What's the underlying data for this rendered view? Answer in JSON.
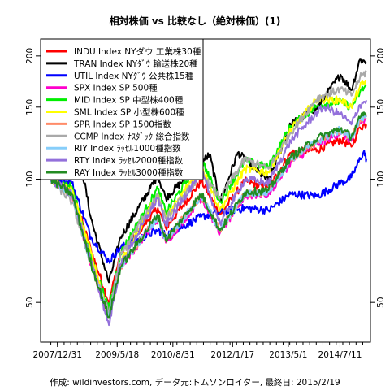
{
  "chart_data": {
    "type": "line",
    "title": "相対株価 vs 比較なし（絶対株価）(1)",
    "footer": "作成: wildinvestors.com, データ元:トムソンロイター, 最終日: 2015/2/19",
    "y_scale": "log",
    "ylim": [
      40,
      220
    ],
    "y_ticks": [
      50,
      100,
      150,
      200
    ],
    "x_range": [
      "2007-11-01",
      "2015-02-19"
    ],
    "x_ticks": [
      {
        "date": "2007-12-31",
        "label": "2007/12/31"
      },
      {
        "date": "2009-05-18",
        "label": "2009/5/18"
      },
      {
        "date": "2010-08-31",
        "label": "2010/8/31"
      },
      {
        "date": "2012-01-17",
        "label": "2012/1/17"
      },
      {
        "date": "2013-05-01",
        "label": "2013/5/1"
      },
      {
        "date": "2014-07-11",
        "label": "2014/7/11"
      }
    ],
    "grid": false,
    "legend_position": "top-left",
    "series": [
      {
        "name": "INDU Index NYダウ 工業株30種",
        "color": "#ff0000",
        "x": [
          "2007-11-01",
          "2008-05-01",
          "2008-10-10",
          "2009-03-09",
          "2009-06-15",
          "2010-04-26",
          "2010-07-02",
          "2011-04-29",
          "2011-10-03",
          "2012-05-01",
          "2012-11-15",
          "2013-05-21",
          "2014-01-02",
          "2014-07-16",
          "2014-10-15",
          "2014-12-26",
          "2015-02-19"
        ],
        "values": [
          100,
          95,
          67,
          50,
          66,
          85,
          76,
          99,
          82,
          99,
          95,
          116,
          118,
          125,
          120,
          134,
          136
        ]
      },
      {
        "name": "TRAN Index NYﾀﾞｳ 輸送株20種",
        "color": "#000000",
        "x": [
          "2007-11-01",
          "2008-07-01",
          "2008-10-10",
          "2009-03-09",
          "2009-06-15",
          "2010-04-26",
          "2010-07-02",
          "2011-07-07",
          "2011-10-03",
          "2012-03-01",
          "2012-11-15",
          "2013-05-21",
          "2014-01-02",
          "2014-07-16",
          "2014-10-15",
          "2014-12-26",
          "2015-02-19"
        ],
        "values": [
          100,
          115,
          80,
          56,
          72,
          102,
          90,
          115,
          88,
          116,
          99,
          136,
          150,
          180,
          165,
          196,
          193
        ]
      },
      {
        "name": "UTIL Index NYﾀﾞｳ 公共株15種",
        "color": "#0000ff",
        "x": [
          "2007-11-01",
          "2008-05-01",
          "2008-10-10",
          "2009-03-09",
          "2009-06-15",
          "2010-04-26",
          "2010-07-02",
          "2011-04-29",
          "2011-10-03",
          "2012-05-01",
          "2012-11-15",
          "2013-05-21",
          "2014-01-02",
          "2014-07-16",
          "2014-10-15",
          "2015-01-28",
          "2015-02-19"
        ],
        "values": [
          100,
          98,
          72,
          63,
          68,
          75,
          73,
          81,
          83,
          85,
          84,
          92,
          91,
          98,
          101,
          117,
          112
        ]
      },
      {
        "name": "SPX Index SP 500種",
        "color": "#ff00cc",
        "x": [
          "2007-11-01",
          "2008-05-01",
          "2008-10-10",
          "2009-03-09",
          "2009-06-15",
          "2010-04-26",
          "2010-07-02",
          "2011-04-29",
          "2011-10-03",
          "2012-05-01",
          "2012-11-15",
          "2013-05-21",
          "2014-01-02",
          "2014-07-16",
          "2014-10-15",
          "2014-12-26",
          "2015-02-19"
        ],
        "values": [
          100,
          92,
          62,
          46,
          61,
          80,
          70,
          90,
          74,
          91,
          92,
          110,
          122,
          130,
          124,
          137,
          140
        ]
      },
      {
        "name": "MID Index SP 中型株400種",
        "color": "#00ee00",
        "x": [
          "2007-11-01",
          "2008-05-01",
          "2008-10-10",
          "2009-03-09",
          "2009-06-15",
          "2010-04-26",
          "2010-07-02",
          "2011-04-29",
          "2011-10-03",
          "2012-05-01",
          "2012-11-15",
          "2013-05-21",
          "2014-01-02",
          "2014-07-16",
          "2014-10-15",
          "2014-12-26",
          "2015-02-19"
        ],
        "values": [
          100,
          96,
          65,
          48,
          66,
          95,
          83,
          112,
          88,
          111,
          107,
          135,
          151,
          155,
          150,
          163,
          170
        ]
      },
      {
        "name": "SML Index SP 小型株600種",
        "color": "#ffff00",
        "x": [
          "2007-11-01",
          "2008-05-01",
          "2008-10-10",
          "2009-03-09",
          "2009-06-15",
          "2010-04-26",
          "2010-07-02",
          "2011-04-29",
          "2011-10-03",
          "2012-05-01",
          "2012-11-15",
          "2013-05-21",
          "2014-01-02",
          "2014-07-16",
          "2014-10-15",
          "2014-12-26",
          "2015-02-19"
        ],
        "values": [
          100,
          94,
          66,
          46,
          62,
          92,
          80,
          108,
          84,
          106,
          104,
          132,
          157,
          156,
          150,
          168,
          174
        ]
      },
      {
        "name": "SPR Index SP 1500指数",
        "color": "#ff8c69",
        "x": [
          "2007-11-01",
          "2008-05-01",
          "2008-10-10",
          "2009-03-09",
          "2009-06-15",
          "2010-04-26",
          "2010-07-02",
          "2011-04-29",
          "2011-10-03",
          "2012-05-01",
          "2012-11-15",
          "2013-05-21",
          "2014-01-02",
          "2014-07-16",
          "2014-10-15",
          "2014-12-26",
          "2015-02-19"
        ],
        "values": [
          100,
          92,
          62,
          46,
          61,
          81,
          71,
          91,
          75,
          92,
          93,
          112,
          124,
          132,
          126,
          139,
          142
        ]
      },
      {
        "name": "CCMP Index ﾅｽﾀﾞｯｸ 総合指数",
        "color": "#a9a9a9",
        "x": [
          "2007-11-01",
          "2008-05-01",
          "2008-10-10",
          "2009-03-09",
          "2009-06-15",
          "2010-04-26",
          "2010-07-02",
          "2011-04-29",
          "2011-10-03",
          "2012-05-01",
          "2012-11-15",
          "2013-05-21",
          "2014-01-02",
          "2014-07-16",
          "2014-10-15",
          "2014-12-26",
          "2015-02-19"
        ],
        "values": [
          100,
          88,
          62,
          47,
          65,
          92,
          80,
          103,
          90,
          112,
          106,
          130,
          158,
          166,
          160,
          177,
          183
        ]
      },
      {
        "name": "RIY Index ﾗｯｾﾙ1000種指数",
        "color": "#87cefa",
        "x": [
          "2007-11-01",
          "2008-05-01",
          "2008-10-10",
          "2009-03-09",
          "2009-06-15",
          "2010-04-26",
          "2010-07-02",
          "2011-04-29",
          "2011-10-03",
          "2012-05-01",
          "2012-11-15",
          "2013-05-21",
          "2014-01-02",
          "2014-07-16",
          "2014-10-15",
          "2014-12-26",
          "2015-02-19"
        ],
        "values": [
          100,
          92,
          62,
          46,
          61,
          81,
          71,
          91,
          75,
          92,
          93,
          112,
          124,
          132,
          126,
          140,
          143
        ]
      },
      {
        "name": "RTY Index ﾗｯｾﾙ2000種指数",
        "color": "#9370db",
        "x": [
          "2007-11-01",
          "2008-05-01",
          "2008-10-10",
          "2009-03-09",
          "2009-06-15",
          "2010-04-26",
          "2010-07-02",
          "2011-04-29",
          "2011-10-03",
          "2012-05-01",
          "2012-11-15",
          "2013-05-21",
          "2014-01-02",
          "2014-03-04",
          "2014-07-16",
          "2014-10-15",
          "2014-12-26",
          "2015-02-19"
        ],
        "values": [
          100,
          92,
          63,
          44,
          62,
          90,
          77,
          105,
          78,
          100,
          98,
          124,
          146,
          150,
          144,
          136,
          152,
          156
        ]
      },
      {
        "name": "RAY Index ﾗｯｾﾙ3000種指数",
        "color": "#228b22",
        "x": [
          "2007-11-01",
          "2008-05-01",
          "2008-10-10",
          "2009-03-09",
          "2009-06-15",
          "2010-04-26",
          "2010-07-02",
          "2011-04-29",
          "2011-10-03",
          "2012-05-01",
          "2012-11-15",
          "2013-05-21",
          "2014-01-02",
          "2014-07-16",
          "2014-10-15",
          "2014-12-26",
          "2015-02-19"
        ],
        "values": [
          100,
          92,
          62,
          46,
          61,
          82,
          71,
          92,
          75,
          93,
          94,
          113,
          126,
          133,
          127,
          141,
          145
        ]
      }
    ]
  }
}
